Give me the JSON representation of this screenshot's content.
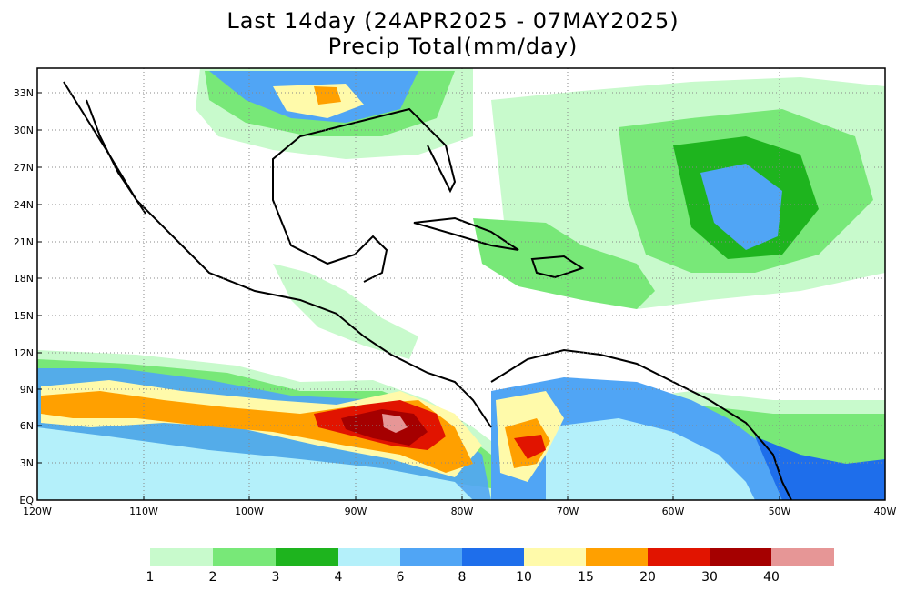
{
  "header": {
    "line1": "Last 14day (24APR2025 - 07MAY2025)",
    "line2": "Precip Total(mm/day)"
  },
  "map": {
    "lat_ticks": [
      "33N",
      "30N",
      "27N",
      "24N",
      "21N",
      "18N",
      "15N",
      "12N",
      "9N",
      "6N",
      "3N",
      "EQ"
    ],
    "lon_ticks": [
      "120W",
      "110W",
      "100W",
      "90W",
      "80W",
      "70W",
      "60W",
      "50W",
      "40W"
    ],
    "lon_range": [
      -120,
      -40
    ],
    "lat_range": [
      0,
      35
    ],
    "gridlines": "dotted"
  },
  "colorbar": {
    "labels": [
      "1",
      "2",
      "3",
      "4",
      "6",
      "8",
      "10",
      "15",
      "20",
      "30",
      "40"
    ],
    "colors": [
      "#c8facc",
      "#78e878",
      "#1eb41e",
      "#b4f0fa",
      "#50a5f5",
      "#1e6eeb",
      "#fffaaa",
      "#ffa000",
      "#e11400",
      "#a50000",
      "#e69696"
    ]
  }
}
